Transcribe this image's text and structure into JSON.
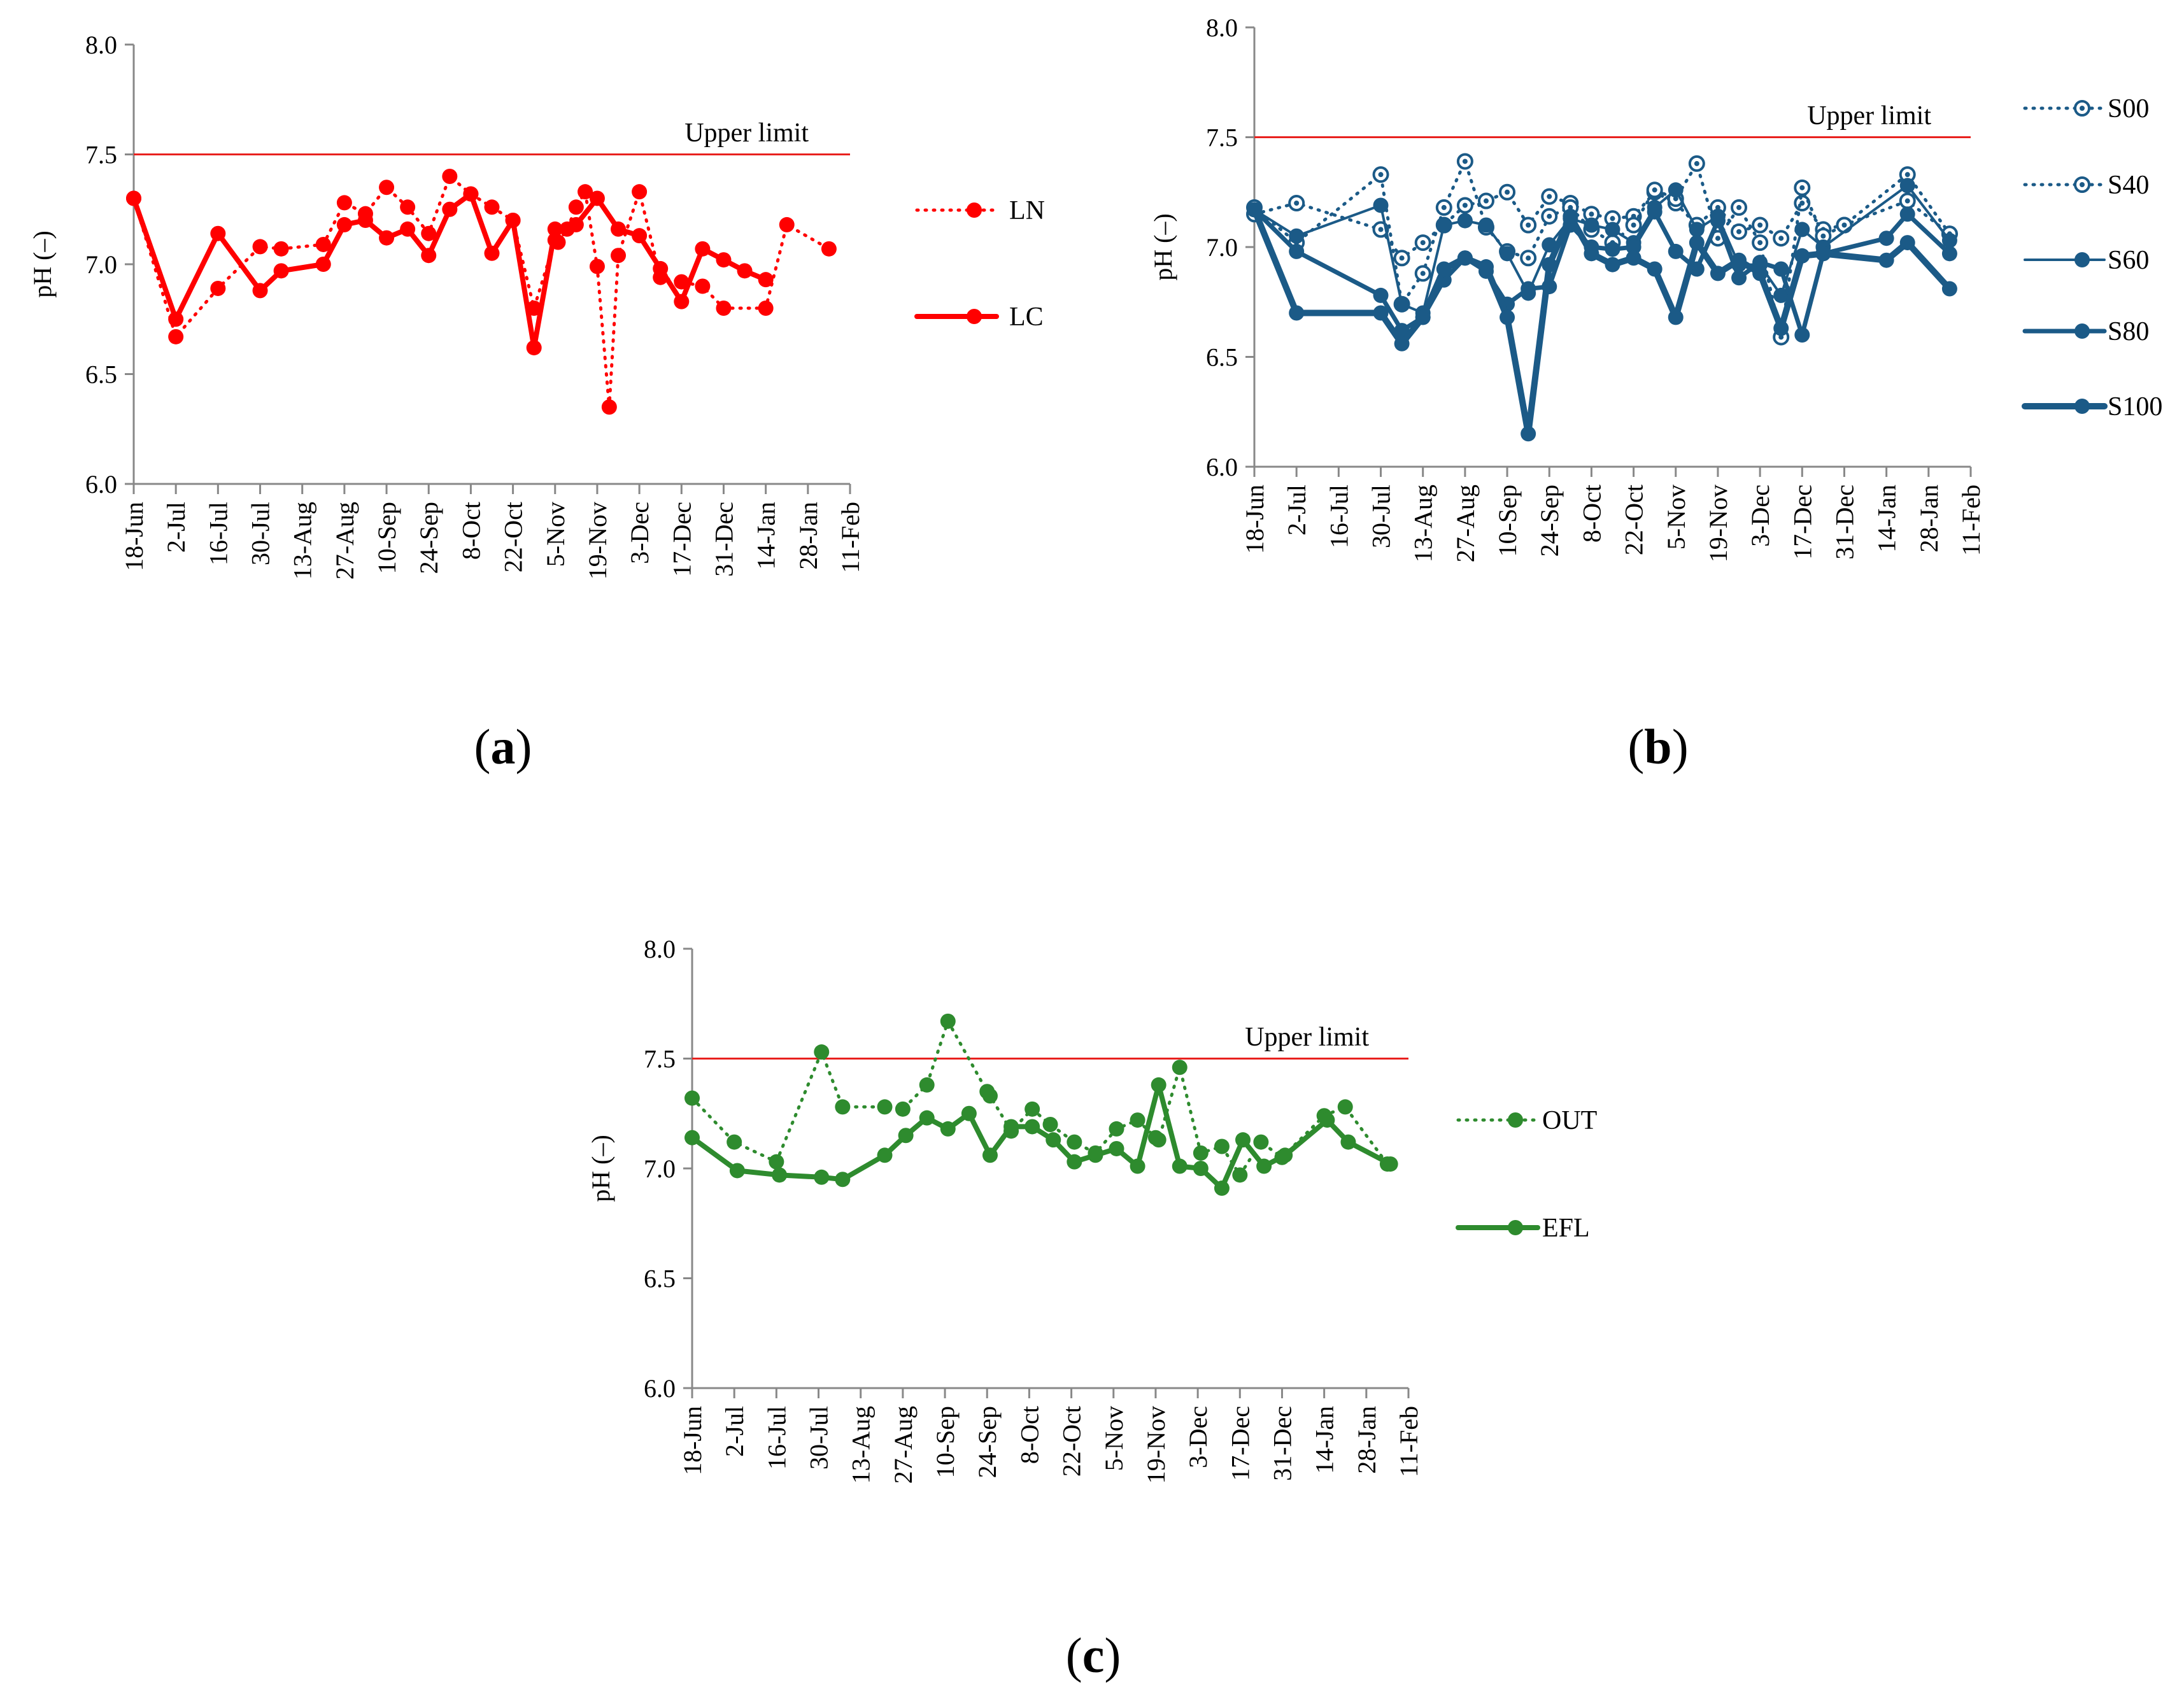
{
  "figure": {
    "panel_labels": [
      {
        "open": "(",
        "letter": "a",
        "close": ")"
      },
      {
        "open": "(",
        "letter": "b",
        "close": ")"
      },
      {
        "open": "(",
        "letter": "c",
        "close": ")"
      }
    ]
  },
  "chart_data": [
    {
      "id": "a",
      "type": "line",
      "title": "",
      "xlabel": "",
      "ylabel": "pH (–)",
      "ylim": [
        6.0,
        8.0
      ],
      "yticks": [
        "6.0",
        "6.5",
        "7.0",
        "7.5",
        "8.0"
      ],
      "x_tick_labels": [
        "18-Jun",
        "2-Jul",
        "16-Jul",
        "30-Jul",
        "13-Aug",
        "27-Aug",
        "10-Sep",
        "24-Sep",
        "8-Oct",
        "22-Oct",
        "5-Nov",
        "19-Nov",
        "3-Dec",
        "17-Dec",
        "31-Dec",
        "14-Jan",
        "28-Jan",
        "11-Feb"
      ],
      "xlim": [
        0,
        238
      ],
      "reference_line": {
        "y": 7.5,
        "label": "Upper limit",
        "color": "#e8211e"
      },
      "legend_position": "right",
      "series": [
        {
          "name": "LN",
          "style": "dotted",
          "color": "#ff0000",
          "marker": "filled",
          "width": 5,
          "x": [
            0,
            14,
            28,
            42,
            49,
            63,
            70,
            77,
            84,
            91,
            98,
            105,
            112,
            119,
            126,
            133,
            140,
            141,
            144,
            147,
            150,
            154,
            158,
            161,
            168,
            175,
            182,
            189,
            196,
            210,
            217,
            231
          ],
          "y": [
            7.3,
            6.67,
            6.89,
            7.08,
            7.07,
            7.09,
            7.28,
            7.23,
            7.35,
            7.26,
            7.14,
            7.4,
            7.32,
            7.26,
            7.2,
            6.8,
            7.11,
            7.1,
            7.16,
            7.26,
            7.33,
            6.99,
            6.35,
            7.04,
            7.33,
            6.94,
            6.92,
            6.9,
            6.8,
            6.8,
            7.18,
            7.07
          ]
        },
        {
          "name": "LC",
          "style": "solid",
          "color": "#ff0000",
          "marker": "filled",
          "width": 8,
          "x": [
            0,
            14,
            28,
            42,
            49,
            63,
            70,
            77,
            84,
            91,
            98,
            105,
            112,
            119,
            126,
            133,
            140,
            147,
            154,
            161,
            168,
            175,
            182,
            189,
            196,
            203,
            210
          ],
          "y": [
            7.3,
            6.75,
            7.14,
            6.88,
            6.97,
            7.0,
            7.18,
            7.2,
            7.12,
            7.16,
            7.04,
            7.25,
            7.32,
            7.05,
            7.2,
            6.62,
            7.16,
            7.18,
            7.3,
            7.16,
            7.13,
            6.98,
            6.83,
            7.07,
            7.02,
            6.97,
            6.93
          ]
        }
      ]
    },
    {
      "id": "b",
      "type": "line",
      "title": "",
      "xlabel": "",
      "ylabel": "pH (–)",
      "ylim": [
        6.0,
        8.0
      ],
      "yticks": [
        "6.0",
        "6.5",
        "7.0",
        "7.5",
        "8.0"
      ],
      "x_tick_labels": [
        "18-Jun",
        "2-Jul",
        "16-Jul",
        "30-Jul",
        "13-Aug",
        "27-Aug",
        "10-Sep",
        "24-Sep",
        "8-Oct",
        "22-Oct",
        "5-Nov",
        "19-Nov",
        "3-Dec",
        "17-Dec",
        "31-Dec",
        "14-Jan",
        "28-Jan",
        "11-Feb"
      ],
      "xlim": [
        0,
        238
      ],
      "reference_line": {
        "y": 7.5,
        "label": "Upper limit",
        "color": "#e8211e"
      },
      "legend_position": "right",
      "series": [
        {
          "name": "S00",
          "style": "dotted",
          "color": "#1b5a87",
          "marker": "ring",
          "width": 5,
          "x": [
            0,
            14,
            42,
            49,
            56,
            63,
            70,
            77,
            84,
            91,
            98,
            105,
            112,
            119,
            126,
            133,
            140,
            147,
            154,
            161,
            168,
            175,
            182,
            189,
            196,
            217,
            231
          ],
          "y": [
            7.15,
            7.2,
            7.08,
            6.95,
            7.02,
            7.1,
            7.19,
            7.21,
            7.25,
            7.1,
            7.23,
            7.2,
            7.15,
            7.13,
            7.14,
            7.25,
            7.2,
            7.1,
            7.18,
            7.07,
            7.1,
            7.04,
            7.2,
            7.08,
            7.1,
            7.21,
            7.06
          ]
        },
        {
          "name": "S40",
          "style": "dotted",
          "color": "#1b5a87",
          "marker": "ring",
          "width": 5,
          "x": [
            0,
            14,
            42,
            49,
            56,
            63,
            70,
            77,
            84,
            91,
            98,
            105,
            112,
            119,
            126,
            133,
            140,
            147,
            154,
            161,
            168,
            175,
            182,
            189,
            196,
            217,
            231
          ],
          "y": [
            7.18,
            7.02,
            7.33,
            6.74,
            6.88,
            7.18,
            7.39,
            7.09,
            6.98,
            6.95,
            7.14,
            7.18,
            7.08,
            7.02,
            7.1,
            7.26,
            7.22,
            7.38,
            7.04,
            7.18,
            7.02,
            6.59,
            7.27,
            7.05,
            7.1,
            7.33,
            7.06
          ]
        },
        {
          "name": "S60",
          "style": "solid",
          "color": "#1b5a87",
          "marker": "filled",
          "width": 4,
          "x": [
            0,
            14,
            42,
            49,
            56,
            63,
            70,
            77,
            84,
            91,
            98,
            105,
            112,
            119,
            126,
            133,
            140,
            147,
            154,
            161,
            168,
            175,
            182,
            189,
            217,
            231
          ],
          "y": [
            7.17,
            7.05,
            7.19,
            6.74,
            6.7,
            7.1,
            7.12,
            7.1,
            6.97,
            6.79,
            7.01,
            7.13,
            7.1,
            7.08,
            7.02,
            7.18,
            7.26,
            7.08,
            7.14,
            6.92,
            6.92,
            6.78,
            7.08,
            7.0,
            7.28,
            7.03
          ]
        },
        {
          "name": "S80",
          "style": "solid",
          "color": "#1b5a87",
          "marker": "filled",
          "width": 7,
          "x": [
            0,
            14,
            42,
            49,
            56,
            63,
            70,
            77,
            84,
            91,
            98,
            105,
            112,
            119,
            126,
            133,
            140,
            147,
            154,
            161,
            168,
            175,
            182,
            189,
            210,
            217,
            231
          ],
          "y": [
            7.17,
            6.98,
            6.78,
            6.62,
            6.68,
            6.85,
            6.95,
            6.89,
            6.74,
            6.81,
            6.82,
            7.1,
            7.0,
            6.99,
            7.0,
            7.16,
            6.98,
            6.9,
            7.12,
            6.86,
            6.93,
            6.9,
            6.6,
            6.97,
            7.04,
            7.15,
            6.97
          ]
        },
        {
          "name": "S100",
          "style": "solid",
          "color": "#1b5a87",
          "marker": "filled",
          "width": 10,
          "x": [
            0,
            14,
            42,
            49,
            56,
            63,
            70,
            77,
            84,
            91,
            98,
            105,
            112,
            119,
            126,
            133,
            140,
            147,
            154,
            161,
            168,
            175,
            182,
            189,
            210,
            217,
            231
          ],
          "y": [
            7.17,
            6.7,
            6.7,
            6.56,
            6.68,
            6.9,
            6.95,
            6.91,
            6.68,
            6.15,
            6.92,
            7.14,
            6.97,
            6.92,
            6.95,
            6.9,
            6.68,
            7.02,
            6.88,
            6.94,
            6.88,
            6.63,
            6.96,
            6.97,
            6.94,
            7.02,
            6.81
          ]
        }
      ]
    },
    {
      "id": "c",
      "type": "line",
      "title": "",
      "xlabel": "",
      "ylabel": "pH (–)",
      "ylim": [
        6.0,
        8.0
      ],
      "yticks": [
        "6.0",
        "6.5",
        "7.0",
        "7.5",
        "8.0"
      ],
      "x_tick_labels": [
        "18-Jun",
        "2-Jul",
        "16-Jul",
        "30-Jul",
        "13-Aug",
        "27-Aug",
        "10-Sep",
        "24-Sep",
        "8-Oct",
        "22-Oct",
        "5-Nov",
        "19-Nov",
        "3-Dec",
        "17-Dec",
        "31-Dec",
        "14-Jan",
        "28-Jan",
        "11-Feb"
      ],
      "xlim": [
        0,
        238
      ],
      "reference_line": {
        "y": 7.5,
        "label": "Upper limit",
        "color": "#e8211e"
      },
      "legend_position": "right",
      "series": [
        {
          "name": "OUT",
          "style": "dotted",
          "color": "#2e8b2e",
          "marker": "filled",
          "width": 5,
          "x": [
            0,
            14,
            28,
            43,
            50,
            64,
            70,
            78,
            85,
            98,
            99,
            106,
            113,
            119,
            127,
            134,
            141,
            148,
            154,
            155,
            162,
            169,
            176,
            182,
            189,
            196,
            210,
            217,
            231
          ],
          "y": [
            7.32,
            7.12,
            7.03,
            7.53,
            7.28,
            7.28,
            7.27,
            7.38,
            7.67,
            7.35,
            7.33,
            7.17,
            7.27,
            7.2,
            7.12,
            7.07,
            7.18,
            7.22,
            7.14,
            7.13,
            7.46,
            7.07,
            7.1,
            6.97,
            7.12,
            7.05,
            7.24,
            7.28,
            7.02
          ]
        },
        {
          "name": "EFL",
          "style": "solid",
          "color": "#2e8b2e",
          "marker": "filled",
          "width": 8,
          "x": [
            0,
            15,
            29,
            43,
            50,
            64,
            71,
            78,
            85,
            92,
            99,
            106,
            113,
            120,
            127,
            134,
            141,
            148,
            155,
            162,
            169,
            176,
            183,
            190,
            197,
            211,
            218,
            232
          ],
          "y": [
            7.14,
            6.99,
            6.97,
            6.96,
            6.95,
            7.06,
            7.15,
            7.23,
            7.18,
            7.25,
            7.06,
            7.19,
            7.19,
            7.13,
            7.03,
            7.06,
            7.09,
            7.01,
            7.38,
            7.01,
            7.0,
            6.91,
            7.13,
            7.01,
            7.06,
            7.22,
            7.12,
            7.02
          ]
        }
      ]
    }
  ]
}
